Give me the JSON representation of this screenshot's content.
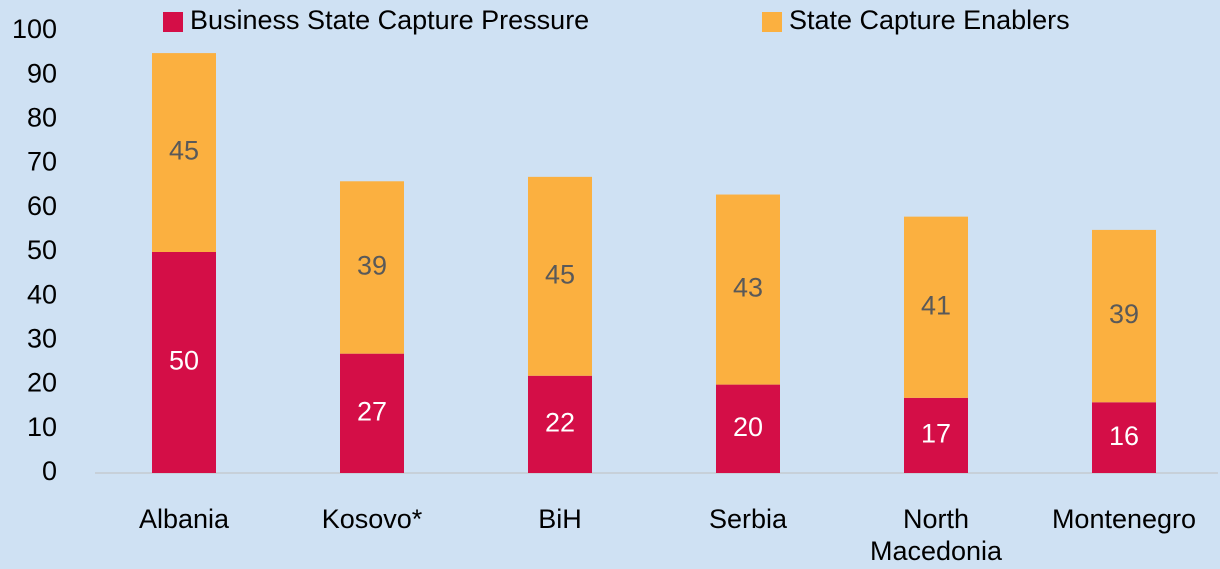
{
  "chart_data": {
    "type": "stacked_bar",
    "categories": [
      "Albania",
      "Kosovo*",
      "BiH",
      "Serbia",
      "North Macedonia",
      "Montenegro"
    ],
    "series": [
      {
        "name": "Business State Capture Pressure",
        "color": "#d40e47",
        "values": [
          50,
          27,
          22,
          20,
          17,
          16
        ]
      },
      {
        "name": "State Capture Enablers",
        "color": "#fbb040",
        "values": [
          45,
          39,
          45,
          43,
          41,
          39
        ]
      }
    ],
    "ylim": [
      0,
      100
    ],
    "yticks": [
      0,
      10,
      20,
      30,
      40,
      50,
      60,
      70,
      80,
      90,
      100
    ],
    "legend": "top",
    "grid": false
  }
}
